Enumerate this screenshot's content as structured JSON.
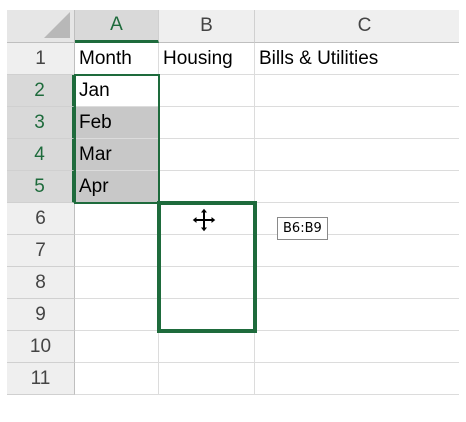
{
  "columns": [
    {
      "label": "A",
      "selected": true
    },
    {
      "label": "B",
      "selected": false
    },
    {
      "label": "C",
      "selected": false
    }
  ],
  "rows": [
    {
      "label": "1",
      "cells": [
        "Month",
        "Housing",
        "Bills & Utilities"
      ]
    },
    {
      "label": "2",
      "cells": [
        "Jan",
        "",
        ""
      ]
    },
    {
      "label": "3",
      "cells": [
        "Feb",
        "",
        ""
      ]
    },
    {
      "label": "4",
      "cells": [
        "Mar",
        "",
        ""
      ]
    },
    {
      "label": "5",
      "cells": [
        "Apr",
        "",
        ""
      ]
    },
    {
      "label": "6",
      "cells": [
        "",
        "",
        ""
      ]
    },
    {
      "label": "7",
      "cells": [
        "",
        "",
        ""
      ]
    },
    {
      "label": "8",
      "cells": [
        "",
        "",
        ""
      ]
    },
    {
      "label": "9",
      "cells": [
        "",
        "",
        ""
      ]
    },
    {
      "label": "10",
      "cells": [
        "",
        "",
        ""
      ]
    },
    {
      "label": "11",
      "cells": [
        "",
        "",
        ""
      ]
    }
  ],
  "selection": {
    "range": "A2:A5"
  },
  "drag": {
    "target_range_tooltip": "B6:B9",
    "cursor_icon": "move-cursor-icon"
  },
  "colors": {
    "accent": "#1e6b3c",
    "selection_fill": "#c8c8c8",
    "header_bg": "#efefef"
  }
}
